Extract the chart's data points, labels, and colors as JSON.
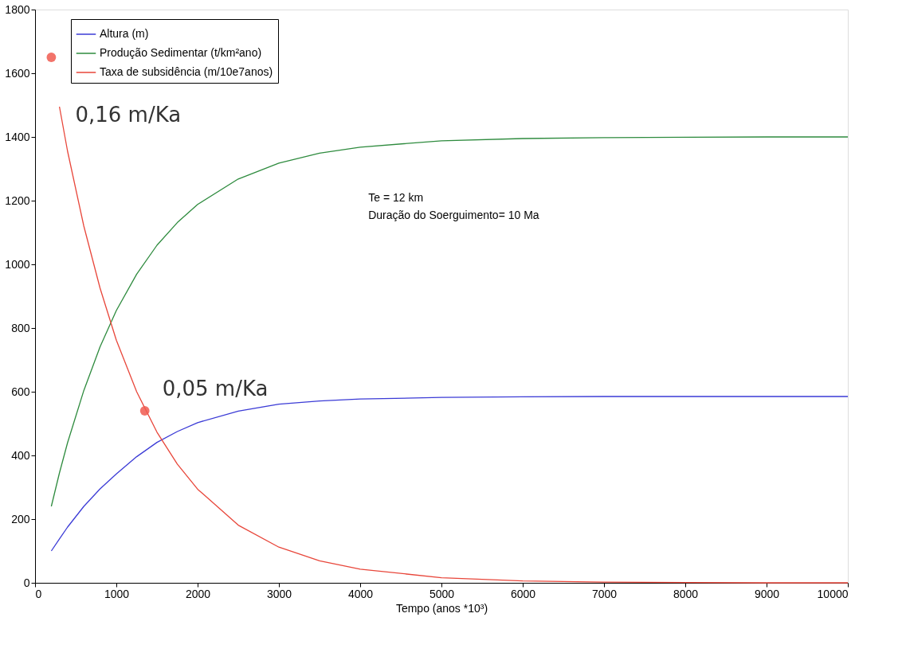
{
  "chart_data": {
    "type": "line",
    "xlabel": "Tempo (anos *10³)",
    "x": [
      200,
      300,
      400,
      600,
      800,
      1000,
      1250,
      1500,
      1750,
      2000,
      2500,
      3000,
      3500,
      4000,
      5000,
      6000,
      7000,
      8000,
      9000,
      10000
    ],
    "series": [
      {
        "name": "Altura (m)",
        "color": "#3b3bd6",
        "values": [
          100,
          138,
          175,
          240,
          295,
          342,
          396,
          441,
          475,
          503,
          539,
          561,
          571,
          577,
          582,
          584,
          585,
          585,
          585,
          585
        ]
      },
      {
        "name": "Produção Sedimentar (t/km²ano)",
        "color": "#2e8b3e",
        "values": [
          240,
          345,
          440,
          604,
          741,
          855,
          969,
          1060,
          1131,
          1188,
          1268,
          1318,
          1349,
          1368,
          1388,
          1395,
          1398,
          1399,
          1400,
          1400
        ]
      },
      {
        "name": "Taxa de subsidência (m/10e7anos)",
        "color": "#e8463a",
        "values": [
          null,
          1495,
          1355,
          1120,
          925,
          762,
          600,
          473,
          373,
          294,
          181,
          112,
          69,
          43,
          16,
          6,
          2,
          1,
          0,
          0
        ]
      }
    ],
    "xlim": [
      0,
      10000
    ],
    "xticks": [
      0,
      1000,
      2000,
      3000,
      4000,
      5000,
      6000,
      7000,
      8000,
      9000,
      10000
    ],
    "ylim": [
      0,
      1800
    ],
    "yticks": [
      0,
      200,
      400,
      600,
      800,
      1000,
      1200,
      1400,
      1600,
      1800
    ],
    "grid": false,
    "legend": "top left",
    "marker": "none",
    "line_style": "solid",
    "annotations": [
      {
        "text": "0,16 m/Ka",
        "x": 200,
        "y": 1650
      },
      {
        "text": "0,05 m/Ka",
        "x": 1350,
        "y": 540
      },
      "Te = 12 km",
      "Duração do Soerguimento= 10 Ma"
    ]
  }
}
